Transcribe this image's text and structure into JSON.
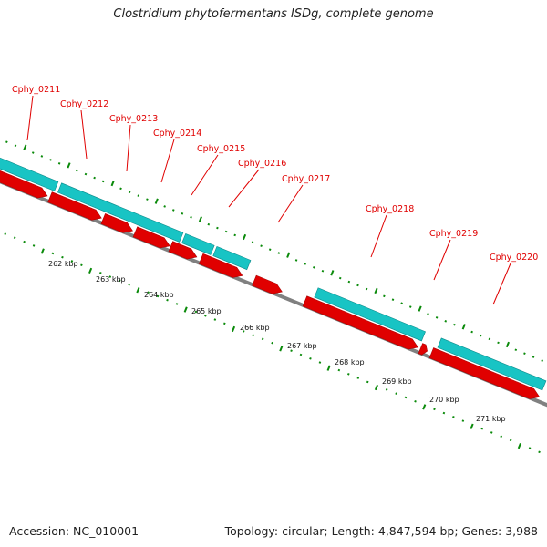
{
  "title": "Clostridium phytofermentans ISDg, complete genome",
  "accession": "Accession: NC_010001",
  "summary": "Topology: circular; Length: 4,847,594 bp; Genes: 3,988",
  "colors": {
    "cds_forward": "#e00000",
    "gene_bar": "#18c4c4",
    "backbone": "#808080",
    "ticks": "#0a8a0a",
    "label_text": "#e00000"
  },
  "genes": [
    {
      "label": "Cphy_0211"
    },
    {
      "label": "Cphy_0212"
    },
    {
      "label": "Cphy_0213"
    },
    {
      "label": "Cphy_0214"
    },
    {
      "label": "Cphy_0215"
    },
    {
      "label": "Cphy_0216"
    },
    {
      "label": "Cphy_0217"
    },
    {
      "label": "Cphy_0218"
    },
    {
      "label": "Cphy_0219"
    },
    {
      "label": "Cphy_0220"
    }
  ],
  "scale": [
    {
      "label": "262 kbp"
    },
    {
      "label": "263 kbp"
    },
    {
      "label": "264 kbp"
    },
    {
      "label": "265 kbp"
    },
    {
      "label": "266 kbp"
    },
    {
      "label": "267 kbp"
    },
    {
      "label": "268 kbp"
    },
    {
      "label": "269 kbp"
    },
    {
      "label": "270 kbp"
    },
    {
      "label": "271 kbp"
    }
  ]
}
